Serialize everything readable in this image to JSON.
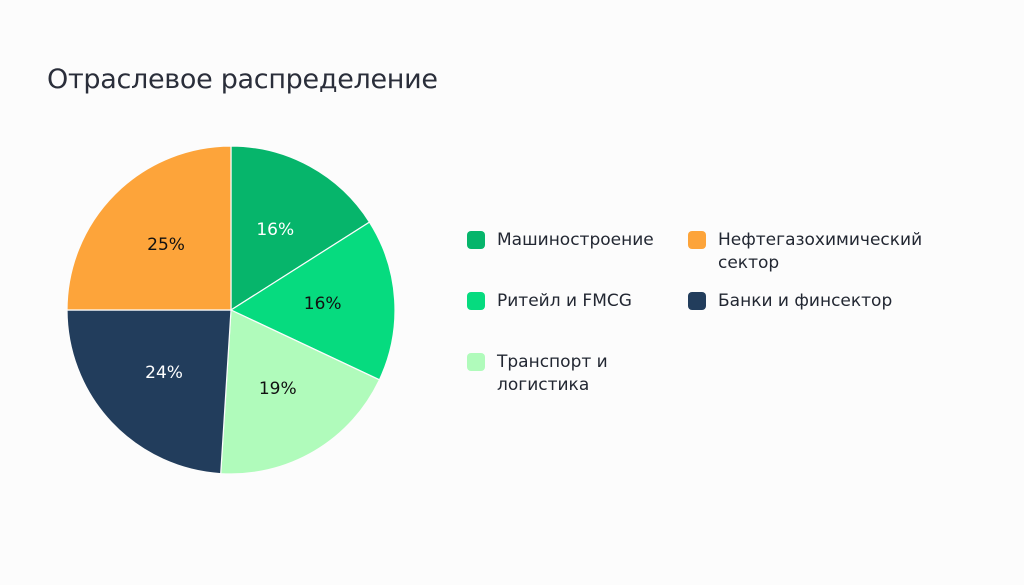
{
  "page": {
    "title": "Отраслевое распределение"
  },
  "chart_data": {
    "type": "pie",
    "title": "Отраслевое распределение",
    "start_angle_deg": 0,
    "direction": "clockwise",
    "categories": [
      "Машиностроение",
      "Ритейл и FMCG",
      "Транспорт и логистика",
      "Банки и финсектор",
      "Нефтегазохимический сектор"
    ],
    "values": [
      16,
      16,
      19,
      24,
      25
    ],
    "labels": [
      "16%",
      "16%",
      "19%",
      "24%",
      "25%"
    ],
    "colors": [
      "#06b56b",
      "#06db7f",
      "#b0fbbb",
      "#223d5c",
      "#fda43a"
    ],
    "label_colors": [
      "#ffffff",
      "#111111",
      "#111111",
      "#ffffff",
      "#111111"
    ],
    "legend_position": "right"
  },
  "legend": [
    {
      "label": "Машиностроение",
      "color": "#06b56b"
    },
    {
      "label": "Нефтегазохимический сектор",
      "color": "#fda43a"
    },
    {
      "label": "Ритейл и FMCG",
      "color": "#06db7f"
    },
    {
      "label": "Банки и финсектор",
      "color": "#223d5c"
    },
    {
      "label": "Транспорт и логистика",
      "color": "#b0fbbb"
    }
  ]
}
